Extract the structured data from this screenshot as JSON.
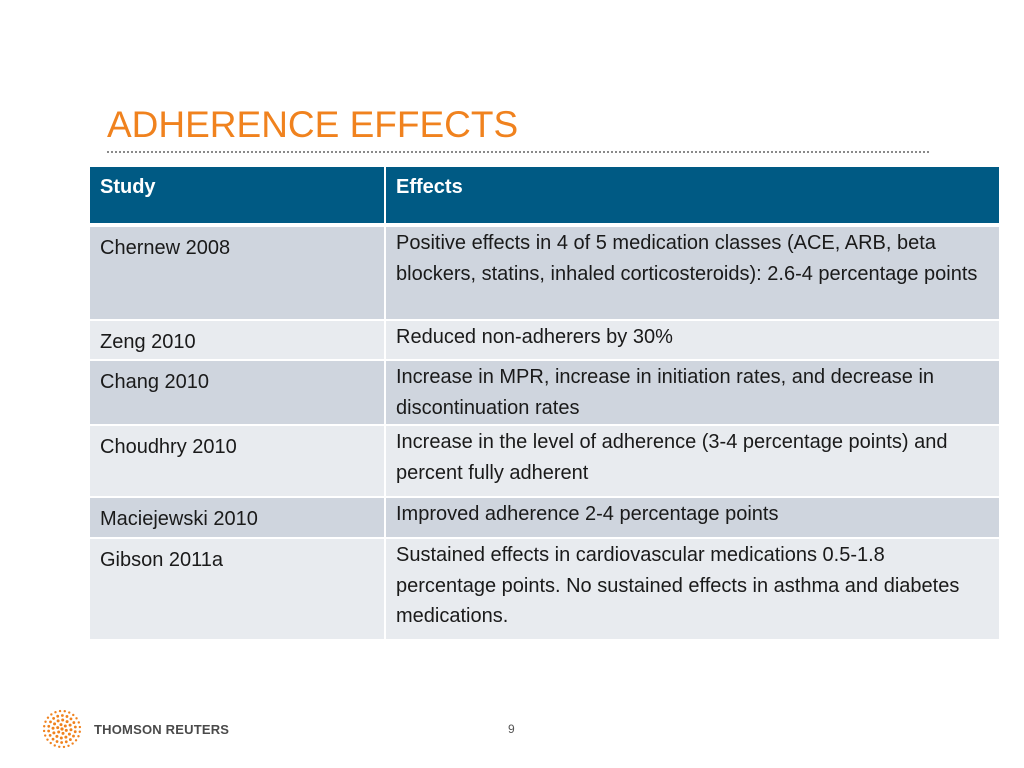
{
  "slide": {
    "title": "ADHERENCE EFFECTS",
    "page_number": "9"
  },
  "table": {
    "headers": [
      "Study",
      "Effects"
    ],
    "rows": [
      {
        "study": "Chernew 2008",
        "effects": "Positive effects in 4 of 5 medication classes (ACE, ARB, beta blockers, statins, inhaled corticosteroids): 2.6-4 percentage points"
      },
      {
        "study": "Zeng 2010",
        "effects": "Reduced non-adherers by 30%"
      },
      {
        "study": "Chang 2010",
        "effects": "Increase in MPR, increase in initiation rates, and decrease in discontinuation rates"
      },
      {
        "study": "Choudhry 2010",
        "effects": "Increase in the level of adherence (3-4 percentage points) and percent fully adherent"
      },
      {
        "study": "Maciejewski 2010",
        "effects": "Improved adherence 2-4 percentage points"
      },
      {
        "study": "Gibson 2011a",
        "effects": "Sustained effects in cardiovascular medications 0.5-1.8 percentage points.  No sustained effects in asthma and diabetes medications."
      }
    ]
  },
  "footer": {
    "logo_text": "THOMSON REUTERS",
    "logo_icon": "thomson-reuters-dot-globe-icon"
  },
  "colors": {
    "title": "#f0821e",
    "header_bg": "#005a84",
    "row_odd": "#cfd5de",
    "row_even": "#e8ebef",
    "logo_accent": "#f0821e"
  }
}
